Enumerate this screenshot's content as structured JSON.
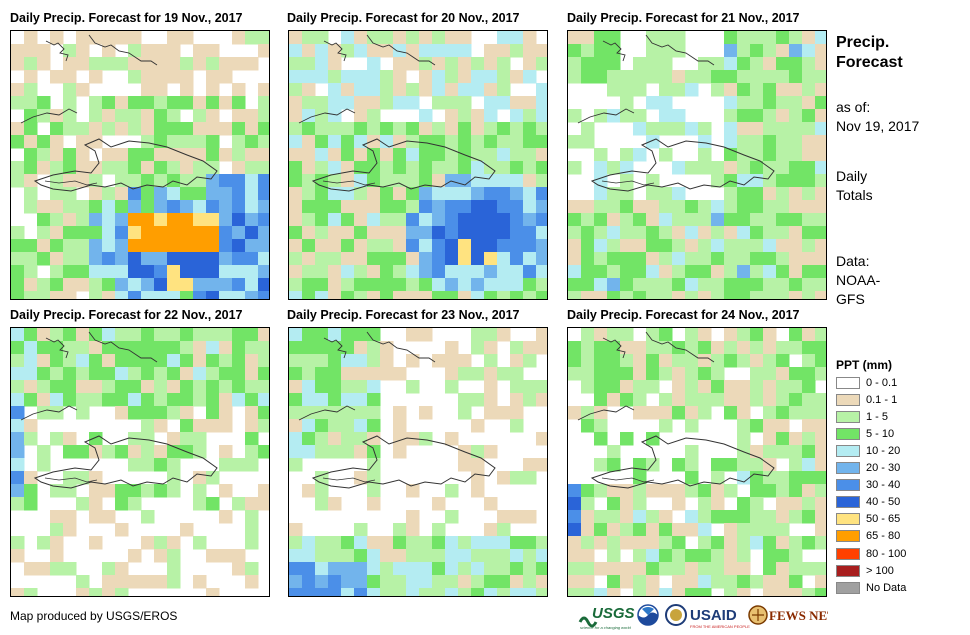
{
  "panels": [
    {
      "title": "Daily Precip. Forecast for 19 Nov., 2017",
      "scenario": "south_heavy"
    },
    {
      "title": "Daily Precip. Forecast for 20 Nov., 2017",
      "scenario": "south_moderate"
    },
    {
      "title": "Daily Precip. Forecast for 21 Nov., 2017",
      "scenario": "widespread_light"
    },
    {
      "title": "Daily Precip. Forecast for 22 Nov., 2017",
      "scenario": "north_light"
    },
    {
      "title": "Daily Precip. Forecast for 23 Nov., 2017",
      "scenario": "mostly_dry"
    },
    {
      "title": "Daily Precip. Forecast for 24 Nov., 2017",
      "scenario": "mixed_light"
    }
  ],
  "side": {
    "title_line1": "Precip.",
    "title_line2": "Forecast",
    "asof_label": "as of:",
    "asof_date": "Nov 19, 2017",
    "daily_line1": "Daily",
    "daily_line2": "Totals",
    "data_line1": "Data:",
    "data_line2": "NOAA-",
    "data_line3": "GFS"
  },
  "legend": {
    "title": "PPT (mm)",
    "items": [
      {
        "label": "0 - 0.1",
        "color": "#ffffff"
      },
      {
        "label": "0.1 - 1",
        "color": "#ecd9b9"
      },
      {
        "label": "1 - 5",
        "color": "#b7f2a6"
      },
      {
        "label": "5 - 10",
        "color": "#72e466"
      },
      {
        "label": "10 - 20",
        "color": "#b4ecf2"
      },
      {
        "label": "20 - 30",
        "color": "#72b4ec"
      },
      {
        "label": "30 - 40",
        "color": "#4b8fe8"
      },
      {
        "label": "40 - 50",
        "color": "#2a64d8"
      },
      {
        "label": "50 - 65",
        "color": "#ffe380"
      },
      {
        "label": "65 - 80",
        "color": "#ff9e00"
      },
      {
        "label": "80 - 100",
        "color": "#ff4000"
      },
      {
        "label": "> 100",
        "color": "#a81e1e"
      },
      {
        "label": "No Data",
        "color": "#a0a0a0"
      }
    ]
  },
  "credit": "Map produced by USGS/EROS",
  "logos": {
    "usgs": "USGS",
    "usgs_tagline": "science for a changing world",
    "usaid": "USAID",
    "usaid_tagline": "FROM THE AMERICAN PEOPLE",
    "fewsnet": "FEWS NET"
  }
}
